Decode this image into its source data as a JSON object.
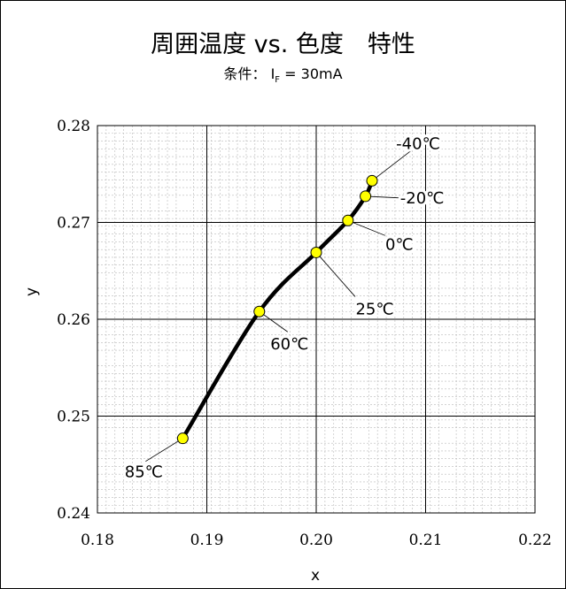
{
  "chart_data": {
    "type": "line",
    "title": "周囲温度 vs. 色度　特性",
    "subtitle": {
      "prefix": "条件：",
      "param": "I",
      "param_sub": "F",
      "value": " = 30mA"
    },
    "xlabel": "x",
    "ylabel": "y",
    "xlim": [
      0.18,
      0.22
    ],
    "ylim": [
      0.24,
      0.28
    ],
    "x_ticks": [
      "0.18",
      "0.19",
      "0.20",
      "0.21",
      "0.22"
    ],
    "y_ticks": [
      "0.24",
      "0.25",
      "0.26",
      "0.27",
      "0.28"
    ],
    "major_grid": true,
    "minor_grid": true,
    "curve_color": "#000000",
    "marker_color": "#ffff00",
    "series": [
      {
        "points": [
          {
            "label": "-40℃",
            "x": 0.2051,
            "y": 0.2743
          },
          {
            "label": "-20℃",
            "x": 0.2045,
            "y": 0.2727
          },
          {
            "label": "0℃",
            "x": 0.2029,
            "y": 0.2702
          },
          {
            "label": "25℃",
            "x": 0.2,
            "y": 0.2669
          },
          {
            "label": "60℃",
            "x": 0.1948,
            "y": 0.2608
          },
          {
            "label": "85℃",
            "x": 0.1878,
            "y": 0.2477
          }
        ]
      }
    ]
  }
}
